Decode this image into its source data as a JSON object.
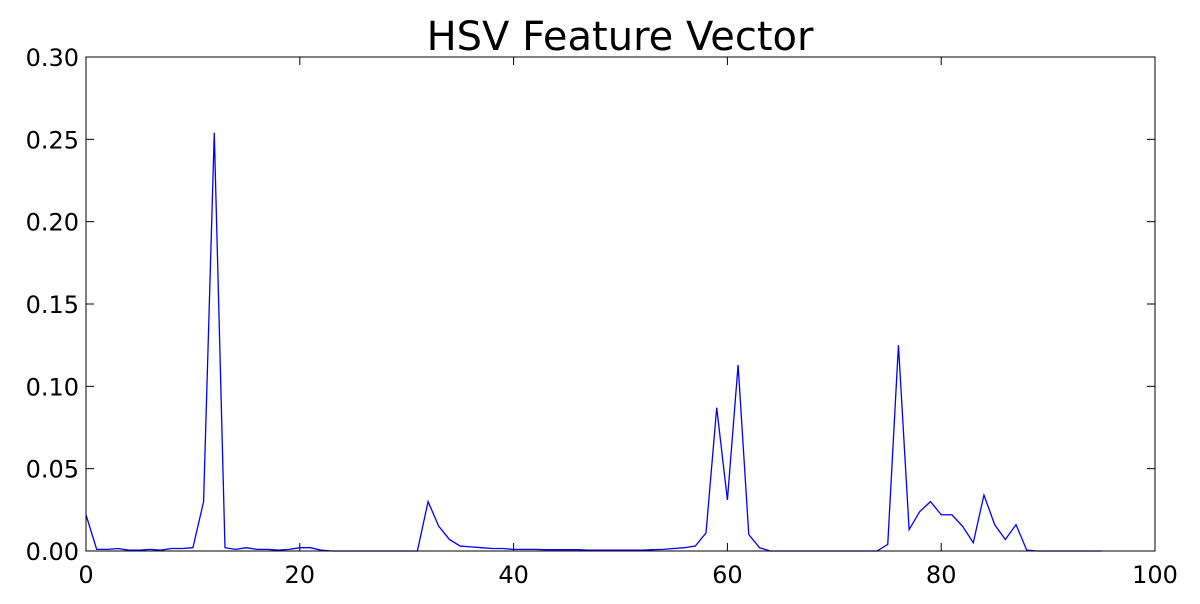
{
  "chart_data": {
    "type": "line",
    "title": "HSV Feature Vector",
    "xlabel": "",
    "ylabel": "",
    "xlim": [
      0,
      100
    ],
    "ylim": [
      0,
      0.3
    ],
    "x_ticks": [
      0,
      20,
      40,
      60,
      80,
      100
    ],
    "x_tick_labels": [
      "0",
      "20",
      "40",
      "60",
      "80",
      "100"
    ],
    "y_ticks": [
      0.0,
      0.05,
      0.1,
      0.15,
      0.2,
      0.25,
      0.3
    ],
    "y_tick_labels": [
      "0.00",
      "0.05",
      "0.10",
      "0.15",
      "0.20",
      "0.25",
      "0.30"
    ],
    "grid": false,
    "series": [
      {
        "color": "#0000ff",
        "x": [
          0,
          1,
          2,
          3,
          4,
          5,
          6,
          7,
          8,
          9,
          10,
          11,
          12,
          13,
          14,
          15,
          16,
          17,
          18,
          19,
          20,
          21,
          22,
          23,
          24,
          25,
          26,
          27,
          28,
          29,
          30,
          31,
          32,
          33,
          34,
          35,
          36,
          37,
          38,
          39,
          40,
          41,
          42,
          43,
          44,
          45,
          46,
          47,
          48,
          49,
          50,
          51,
          52,
          53,
          54,
          55,
          56,
          57,
          58,
          59,
          60,
          61,
          62,
          63,
          64,
          65,
          66,
          67,
          68,
          69,
          70,
          71,
          72,
          73,
          74,
          75,
          76,
          77,
          78,
          79,
          80,
          81,
          82,
          83,
          84,
          85,
          86,
          87,
          88,
          89,
          90,
          91,
          92,
          93,
          94,
          95
        ],
        "values": [
          0.022,
          0.001,
          0.001,
          0.0015,
          0.0005,
          0.0005,
          0.001,
          0.0005,
          0.0015,
          0.0015,
          0.002,
          0.03,
          0.254,
          0.002,
          0.001,
          0.002,
          0.001,
          0.001,
          0.0005,
          0.001,
          0.002,
          0.002,
          0.0005,
          0,
          0,
          0,
          0,
          0,
          0,
          0,
          0,
          0,
          0.03,
          0.015,
          0.007,
          0.003,
          0.0025,
          0.002,
          0.0015,
          0.0015,
          0.001,
          0.001,
          0.001,
          0.0008,
          0.0008,
          0.0008,
          0.0008,
          0.0005,
          0.0005,
          0.0005,
          0.0005,
          0.0005,
          0.0005,
          0.0008,
          0.001,
          0.0015,
          0.002,
          0.003,
          0.011,
          0.087,
          0.031,
          0.113,
          0.01,
          0.002,
          0,
          0,
          0,
          0,
          0,
          0,
          0,
          0,
          0,
          0,
          0,
          0.004,
          0.125,
          0.013,
          0.024,
          0.03,
          0.022,
          0.022,
          0.015,
          0.005,
          0.034,
          0.016,
          0.007,
          0.016,
          0.0005,
          0,
          0,
          0,
          0,
          0,
          0,
          0
        ]
      }
    ]
  }
}
